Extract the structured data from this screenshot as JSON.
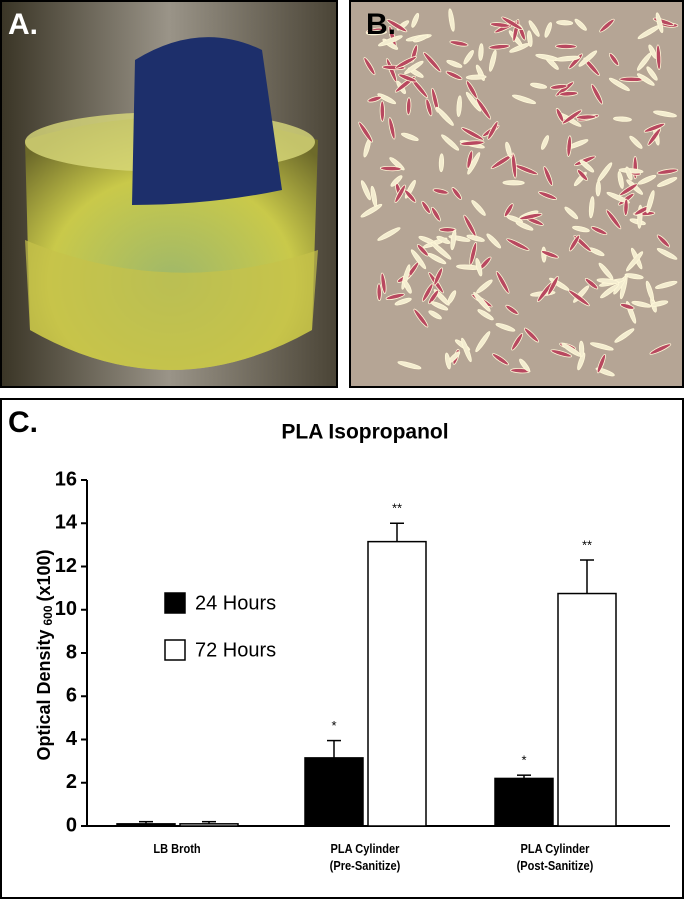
{
  "panels": [
    "A.",
    "B.",
    "C."
  ],
  "chart_data": {
    "type": "bar",
    "title": "PLA Isopropanol",
    "ylabel": "Optical Density",
    "ylabel_sub": "600",
    "ylabel_suffix": "(x100)",
    "categories": [
      "LB Broth",
      "PLA Cylinder\n(Pre-Sanitize)",
      "PLA Cylinder\n(Post-Sanitize)"
    ],
    "series": [
      {
        "name": "24 Hours",
        "color": "#000000",
        "values": [
          0.1,
          3.15,
          2.2
        ],
        "errors": [
          0.1,
          0.8,
          0.15
        ],
        "labels": [
          null,
          "*",
          "*"
        ]
      },
      {
        "name": "72 Hours",
        "color": "#ffffff",
        "values": [
          0.1,
          13.15,
          10.75
        ],
        "errors": [
          0.1,
          0.85,
          1.55
        ],
        "labels": [
          null,
          "**",
          "**"
        ]
      }
    ],
    "ylim": [
      0,
      16
    ],
    "yticks": [
      0,
      2,
      4,
      6,
      8,
      10,
      12,
      14,
      16
    ]
  }
}
